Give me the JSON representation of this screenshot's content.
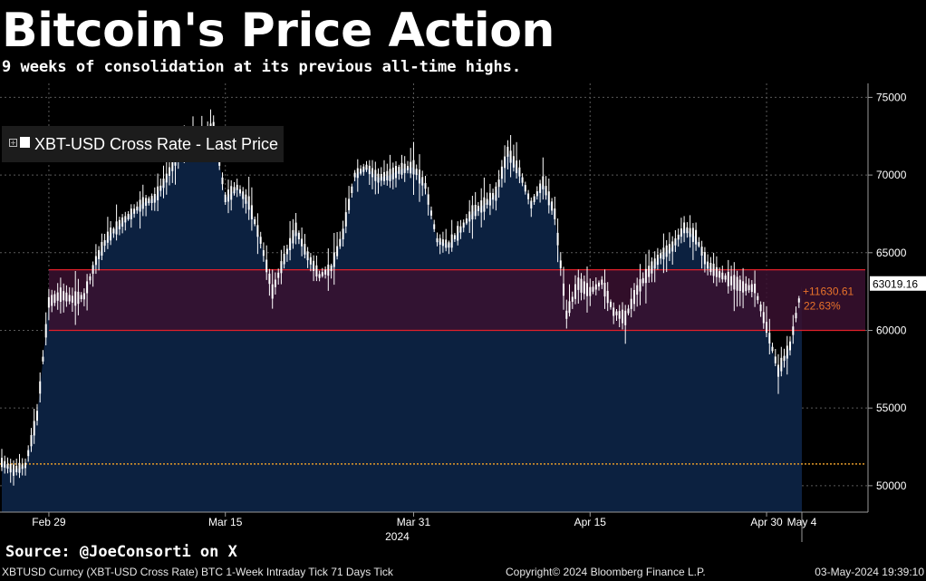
{
  "title": "Bitcoin's Price Action",
  "subtitle": "9 weeks of consolidation at its previous all-time highs.",
  "source": "Source: @JoeConsorti on X",
  "footer": {
    "left": "XBTUSD Curncy (XBT-USD Cross Rate) BTC 1-Week Intraday Tick 71 Days  Tick",
    "center": "Copyright© 2024 Bloomberg Finance L.P.",
    "right": "03-May-2024 19:39:10"
  },
  "legend": {
    "label": "XBT-USD Cross Rate - Last Price"
  },
  "colors": {
    "background": "#000000",
    "area_fill": "#0c2140",
    "band_fill": "#3a1030",
    "band_line": "#e0202a",
    "support_line": "#e39a2a",
    "candle": "#ffffff",
    "annotation": "#e8722a"
  },
  "chart_data": {
    "type": "area",
    "series_name": "XBT-USD Cross Rate - Last Price",
    "x_tick_labels": [
      "Feb 29",
      "Mar 15",
      "Mar 31",
      "Apr 15",
      "Apr 30",
      "May 4"
    ],
    "x_year_label": "2024",
    "y_ticks": [
      50000,
      55000,
      60000,
      65000,
      70000,
      75000
    ],
    "y_tick_labels": [
      "50000",
      "55000",
      "60000",
      "65000",
      "70000",
      "75000"
    ],
    "ylim": [
      48300,
      75900
    ],
    "grid": true,
    "legend_position": "top-left",
    "last_price": 63019.16,
    "last_price_label": "63019.16",
    "band": {
      "low": 60000,
      "high": 63900
    },
    "support_level": 51400,
    "annotation": {
      "change": "+11630.61",
      "change_pct": "22.63%"
    },
    "x": [
      "Feb 25",
      "Feb 26",
      "Feb 27",
      "Feb 28",
      "Feb 29",
      "Mar 1",
      "Mar 2",
      "Mar 3",
      "Mar 4",
      "Mar 5",
      "Mar 6",
      "Mar 7",
      "Mar 8",
      "Mar 9",
      "Mar 10",
      "Mar 11",
      "Mar 12",
      "Mar 13",
      "Mar 14",
      "Mar 15",
      "Mar 16",
      "Mar 17",
      "Mar 18",
      "Mar 19",
      "Mar 20",
      "Mar 21",
      "Mar 22",
      "Mar 23",
      "Mar 24",
      "Mar 25",
      "Mar 26",
      "Mar 27",
      "Mar 28",
      "Mar 29",
      "Mar 30",
      "Mar 31",
      "Apr 1",
      "Apr 2",
      "Apr 3",
      "Apr 4",
      "Apr 5",
      "Apr 6",
      "Apr 7",
      "Apr 8",
      "Apr 9",
      "Apr 10",
      "Apr 11",
      "Apr 12",
      "Apr 13",
      "Apr 14",
      "Apr 15",
      "Apr 16",
      "Apr 17",
      "Apr 18",
      "Apr 19",
      "Apr 20",
      "Apr 21",
      "Apr 22",
      "Apr 23",
      "Apr 24",
      "Apr 25",
      "Apr 26",
      "Apr 27",
      "Apr 28",
      "Apr 29",
      "Apr 30",
      "May 1",
      "May 2",
      "May 3"
    ],
    "values": [
      51500,
      51000,
      51300,
      54500,
      61800,
      62300,
      62000,
      62200,
      64500,
      66000,
      66800,
      67500,
      68200,
      68500,
      69800,
      71500,
      72200,
      72500,
      73000,
      68500,
      69200,
      68200,
      65800,
      62500,
      64600,
      66500,
      64800,
      63500,
      64000,
      66200,
      70000,
      70500,
      69800,
      70000,
      70400,
      70500,
      69300,
      65800,
      65500,
      66500,
      67600,
      68100,
      68800,
      71500,
      70200,
      68100,
      69500,
      67500,
      61000,
      63000,
      62500,
      63100,
      61200,
      60800,
      62600,
      63800,
      64800,
      65400,
      66600,
      66000,
      64200,
      63600,
      63200,
      62800,
      62700,
      60200,
      57400,
      59000,
      62900
    ]
  }
}
